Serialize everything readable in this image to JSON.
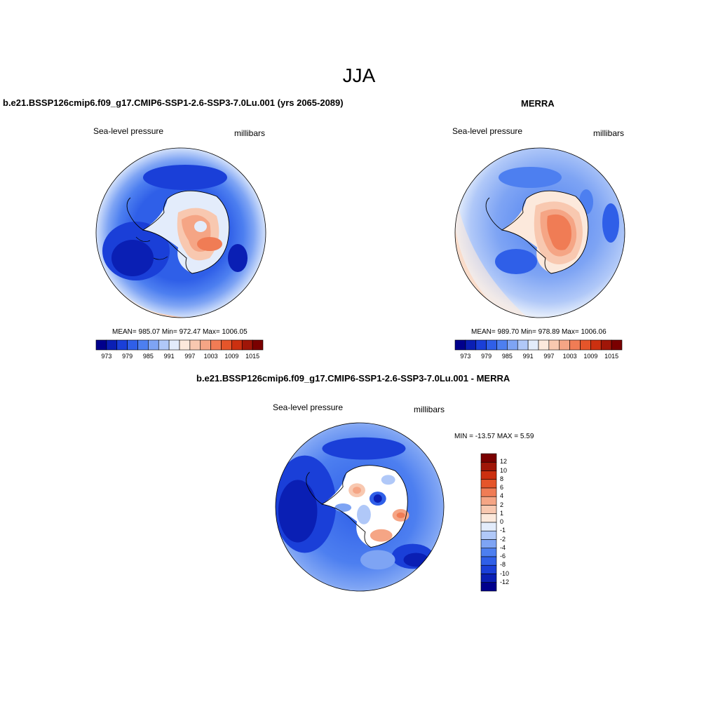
{
  "figure": {
    "title": "JJA"
  },
  "panels": [
    {
      "title": "b.e21.BSSP126cmip6.f09_g17.CMIP6-SSP1-2.6-SSP3-7.0Lu.001 (yrs 2065-2089)",
      "left_label": "Sea-level pressure",
      "right_label": "millibars",
      "stats": "MEAN= 985.07  Min= 972.47  Max= 1006.05",
      "mean": 985.07,
      "min": 972.47,
      "max": 1006.05
    },
    {
      "title": "MERRA",
      "left_label": "Sea-level pressure",
      "right_label": "millibars",
      "stats": "MEAN= 989.70  Min= 978.89  Max= 1006.06",
      "mean": 989.7,
      "min": 978.89,
      "max": 1006.06
    },
    {
      "title": "b.e21.BSSP126cmip6.f09_g17.CMIP6-SSP1-2.6-SSP3-7.0Lu.001 - MERRA",
      "left_label": "Sea-level pressure",
      "right_label": "millibars",
      "stats": "MIN = -13.57 MAX =   5.59",
      "min": -13.57,
      "max": 5.59
    }
  ],
  "slp_colorbar": {
    "tick_labels": [
      "973",
      "979",
      "985",
      "991",
      "997",
      "1003",
      "1009",
      "1015"
    ],
    "colors": [
      "#00008c",
      "#0a1fb4",
      "#1a3fd8",
      "#2f5fe8",
      "#4d7ff0",
      "#7ea4f4",
      "#b0c8f8",
      "#e3ecfb",
      "#fce9dc",
      "#f8c8b0",
      "#f5a585",
      "#f07c55",
      "#e5552a",
      "#cc3010",
      "#a01608",
      "#7a0000"
    ]
  },
  "diff_colorbar": {
    "tick_labels": [
      "12",
      "10",
      "8",
      "6",
      "4",
      "2",
      "1",
      "0",
      "-1",
      "-2",
      "-4",
      "-6",
      "-8",
      "-10",
      "-12"
    ],
    "colors": [
      "#7a0000",
      "#a01608",
      "#cc3010",
      "#e5552a",
      "#f07c55",
      "#f5a585",
      "#f8c8b0",
      "#fce9dc",
      "#e3ecfb",
      "#b0c8f8",
      "#7ea4f4",
      "#4d7ff0",
      "#2f5fe8",
      "#1a3fd8",
      "#0a1fb4",
      "#00008c"
    ]
  },
  "colors": {
    "ocean_mid": "#2f5fe8",
    "ocean_dark": "#1a3fd8",
    "ocean_light": "#7ea4f4",
    "land_high": "#f07c55",
    "land_mid": "#f5a585",
    "coast": "#000000"
  }
}
